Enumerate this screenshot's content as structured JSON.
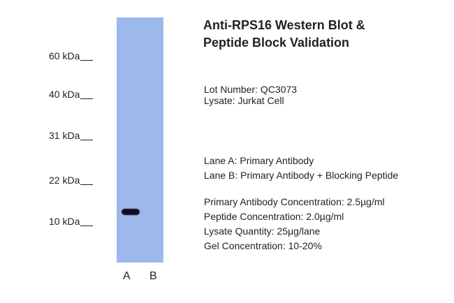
{
  "title": {
    "line1": "Anti-RPS16 Western Blot &",
    "line2": "Peptide Block Validation"
  },
  "markers": [
    "60 kDa",
    "40 kDa",
    "31 kDa",
    "22 kDa",
    "10 kDa"
  ],
  "lanes": [
    "A",
    "B"
  ],
  "lot": {
    "lot_number": "Lot Number: QC3073",
    "lysate": "Lysate: Jurkat Cell"
  },
  "lane_desc": {
    "a": "Lane A: Primary Antibody",
    "b": "Lane B: Primary Antibody + Blocking Peptide"
  },
  "conditions": {
    "primary": "Primary Antibody Concentration: 2.5µg/ml",
    "peptide": "Peptide Concentration: 2.0µg/ml",
    "lysate_qty": "Lysate Quantity: 25µg/lane",
    "gel": "Gel Concentration: 10-20%"
  },
  "colors": {
    "membrane": "#9db8ec",
    "band": "#0d0f1c"
  }
}
